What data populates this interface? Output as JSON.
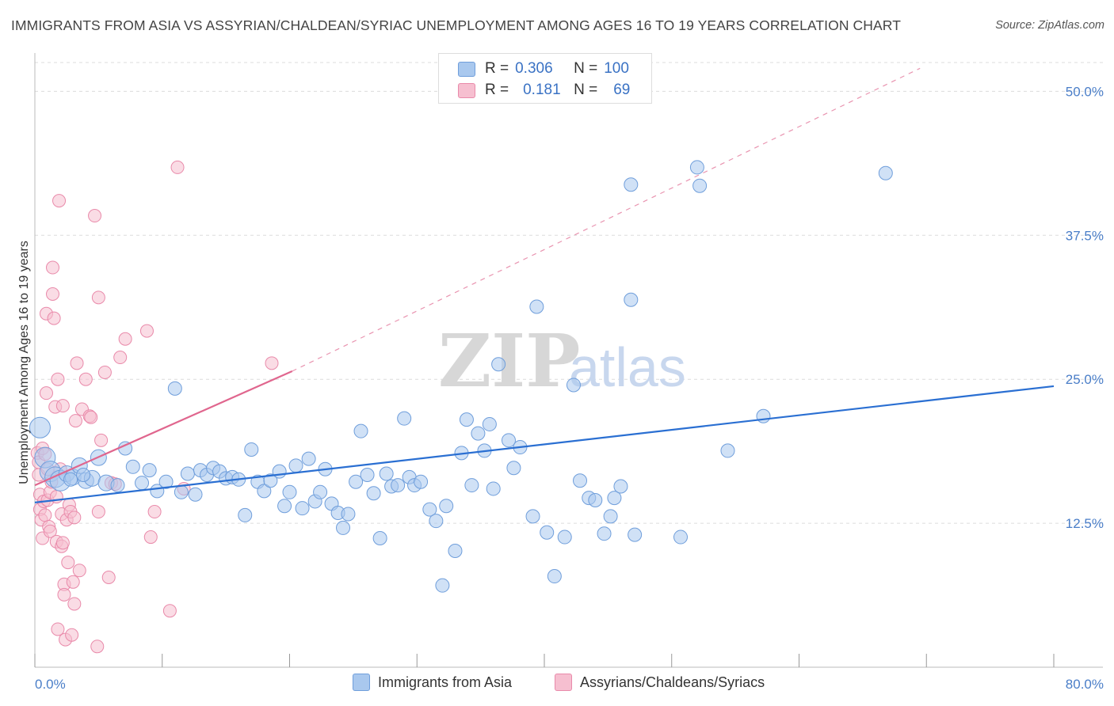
{
  "title": "IMMIGRANTS FROM ASIA VS ASSYRIAN/CHALDEAN/SYRIAC UNEMPLOYMENT AMONG AGES 16 TO 19 YEARS CORRELATION CHART",
  "source": "Source: ZipAtlas.com",
  "colors": {
    "blue_fill": "#a9c8ee",
    "blue_stroke": "#6f9edb",
    "blue_line": "#2a6fd2",
    "pink_fill": "#f6bfd0",
    "pink_stroke": "#e98aaa",
    "pink_line": "#e0668e",
    "grid": "#dcdcdc",
    "axis": "#999999",
    "tick_label": "#4a7ec8"
  },
  "legend": {
    "rows": [
      {
        "r_label": "R =",
        "r_value": "0.306",
        "n_label": "N =",
        "n_value": "100"
      },
      {
        "r_label": "R =",
        "r_value": "0.181",
        "n_label": "N =",
        "n_value": "69"
      }
    ]
  },
  "watermark": {
    "zip": "ZIP",
    "atlas": "atlas"
  },
  "chart_data": {
    "type": "scatter",
    "title": "IMMIGRANTS FROM ASIA VS ASSYRIAN/CHALDEAN/SYRIAC UNEMPLOYMENT AMONG AGES 16 TO 19 YEARS CORRELATION CHART",
    "xlabel": "",
    "ylabel": "Unemployment Among Ages 16 to 19 years",
    "xlim": [
      0,
      80
    ],
    "ylim": [
      0,
      52.5
    ],
    "x_tick_labels": [
      "0.0%",
      "80.0%"
    ],
    "y_ticks": [
      12.5,
      25.0,
      37.5,
      50.0
    ],
    "y_tick_labels": [
      "12.5%",
      "25.0%",
      "37.5%",
      "50.0%"
    ],
    "grid": true,
    "series": [
      {
        "name": "Immigrants from Asia",
        "r": 0.306,
        "n": 100,
        "trend": {
          "x0": 0,
          "y0": 14.3,
          "x1": 80,
          "y1": 24.4
        },
        "points": [
          [
            0.4,
            20.8
          ],
          [
            0.8,
            18.2
          ],
          [
            1.2,
            17.0
          ],
          [
            1.6,
            16.5
          ],
          [
            2.0,
            16.2
          ],
          [
            2.5,
            16.8
          ],
          [
            3.0,
            16.5
          ],
          [
            3.5,
            17.5
          ],
          [
            4.0,
            16.2
          ],
          [
            4.5,
            16.4
          ],
          [
            5.0,
            18.2
          ],
          [
            5.6,
            16.0
          ],
          [
            6.5,
            15.8
          ],
          [
            7.1,
            19.0
          ],
          [
            7.7,
            17.4
          ],
          [
            8.4,
            16.0
          ],
          [
            9.0,
            17.1
          ],
          [
            9.6,
            15.3
          ],
          [
            10.3,
            16.1
          ],
          [
            11.0,
            24.2
          ],
          [
            11.5,
            15.2
          ],
          [
            12.0,
            16.8
          ],
          [
            12.6,
            15.0
          ],
          [
            13.0,
            17.1
          ],
          [
            13.5,
            16.7
          ],
          [
            14.0,
            17.3
          ],
          [
            14.5,
            17.0
          ],
          [
            15.0,
            16.4
          ],
          [
            15.5,
            16.5
          ],
          [
            16.0,
            16.3
          ],
          [
            16.5,
            13.2
          ],
          [
            17.0,
            18.9
          ],
          [
            17.5,
            16.1
          ],
          [
            18.0,
            15.3
          ],
          [
            18.5,
            16.2
          ],
          [
            19.2,
            17.0
          ],
          [
            19.6,
            14.0
          ],
          [
            20.0,
            15.2
          ],
          [
            20.5,
            17.5
          ],
          [
            21.0,
            13.8
          ],
          [
            21.5,
            18.1
          ],
          [
            22.0,
            14.4
          ],
          [
            22.4,
            15.2
          ],
          [
            22.8,
            17.2
          ],
          [
            23.3,
            14.2
          ],
          [
            23.8,
            13.4
          ],
          [
            24.2,
            12.1
          ],
          [
            24.6,
            13.3
          ],
          [
            25.2,
            16.1
          ],
          [
            25.6,
            20.5
          ],
          [
            26.1,
            16.7
          ],
          [
            26.6,
            15.1
          ],
          [
            27.1,
            11.2
          ],
          [
            27.6,
            16.8
          ],
          [
            28.0,
            15.7
          ],
          [
            28.5,
            15.8
          ],
          [
            29.0,
            21.6
          ],
          [
            29.4,
            16.5
          ],
          [
            29.8,
            15.8
          ],
          [
            30.3,
            16.1
          ],
          [
            31.0,
            13.7
          ],
          [
            31.5,
            12.7
          ],
          [
            32.0,
            7.1
          ],
          [
            32.3,
            14.0
          ],
          [
            33.0,
            10.1
          ],
          [
            33.5,
            18.6
          ],
          [
            33.9,
            21.5
          ],
          [
            34.3,
            15.8
          ],
          [
            34.8,
            20.3
          ],
          [
            35.3,
            18.8
          ],
          [
            35.7,
            21.1
          ],
          [
            36.0,
            15.5
          ],
          [
            36.4,
            26.3
          ],
          [
            37.2,
            19.7
          ],
          [
            37.6,
            17.3
          ],
          [
            38.1,
            19.1
          ],
          [
            39.1,
            13.1
          ],
          [
            39.4,
            31.3
          ],
          [
            40.2,
            11.7
          ],
          [
            40.8,
            7.9
          ],
          [
            41.6,
            11.3
          ],
          [
            42.3,
            24.5
          ],
          [
            42.8,
            16.2
          ],
          [
            43.5,
            14.7
          ],
          [
            44.0,
            14.5
          ],
          [
            44.7,
            11.6
          ],
          [
            45.2,
            13.1
          ],
          [
            45.5,
            14.7
          ],
          [
            46.0,
            15.7
          ],
          [
            46.8,
            31.9
          ],
          [
            46.8,
            41.9
          ],
          [
            47.1,
            11.5
          ],
          [
            50.7,
            11.3
          ],
          [
            52.0,
            43.4
          ],
          [
            52.2,
            41.8
          ],
          [
            54.4,
            18.8
          ],
          [
            57.2,
            21.8
          ],
          [
            66.8,
            42.9
          ],
          [
            3.8,
            16.7
          ],
          [
            2.8,
            16.3
          ]
        ]
      },
      {
        "name": "Assyrians/Chaldeans/Syriacs",
        "r": 0.181,
        "n": 69,
        "trend": {
          "x0": 0,
          "y0": 15.8,
          "x1": 20.2,
          "y1": 25.7
        },
        "trend_dashed": {
          "x0": 20.2,
          "y0": 25.7,
          "x1": 69.5,
          "y1": 52.0
        },
        "points": [
          [
            0.2,
            18.6
          ],
          [
            0.3,
            17.8
          ],
          [
            0.3,
            16.7
          ],
          [
            0.4,
            15.0
          ],
          [
            0.4,
            13.7
          ],
          [
            0.5,
            12.8
          ],
          [
            0.6,
            11.2
          ],
          [
            0.6,
            19.0
          ],
          [
            0.7,
            14.4
          ],
          [
            0.8,
            18.5
          ],
          [
            0.8,
            13.2
          ],
          [
            0.9,
            23.8
          ],
          [
            0.9,
            30.7
          ],
          [
            1.0,
            17.2
          ],
          [
            1.0,
            14.5
          ],
          [
            1.1,
            12.2
          ],
          [
            1.2,
            11.8
          ],
          [
            1.2,
            15.2
          ],
          [
            1.3,
            16.1
          ],
          [
            1.4,
            34.7
          ],
          [
            1.4,
            32.4
          ],
          [
            1.5,
            30.3
          ],
          [
            1.6,
            22.6
          ],
          [
            1.7,
            14.8
          ],
          [
            1.7,
            10.9
          ],
          [
            1.8,
            3.3
          ],
          [
            1.8,
            25.0
          ],
          [
            1.9,
            40.5
          ],
          [
            2.0,
            17.2
          ],
          [
            2.1,
            13.3
          ],
          [
            2.1,
            10.5
          ],
          [
            2.2,
            10.8
          ],
          [
            2.2,
            22.7
          ],
          [
            2.3,
            7.2
          ],
          [
            2.3,
            6.3
          ],
          [
            2.4,
            2.4
          ],
          [
            2.5,
            12.8
          ],
          [
            2.6,
            9.1
          ],
          [
            2.7,
            14.1
          ],
          [
            2.8,
            13.5
          ],
          [
            2.9,
            2.8
          ],
          [
            3.0,
            7.4
          ],
          [
            3.1,
            13.0
          ],
          [
            3.1,
            5.5
          ],
          [
            3.2,
            21.4
          ],
          [
            3.3,
            26.4
          ],
          [
            3.5,
            8.4
          ],
          [
            3.7,
            22.4
          ],
          [
            4.0,
            25.0
          ],
          [
            4.3,
            21.8
          ],
          [
            4.4,
            21.7
          ],
          [
            4.7,
            39.2
          ],
          [
            4.9,
            1.8
          ],
          [
            5.0,
            32.1
          ],
          [
            5.0,
            13.5
          ],
          [
            5.2,
            19.7
          ],
          [
            5.5,
            25.6
          ],
          [
            5.8,
            7.8
          ],
          [
            6.0,
            16.0
          ],
          [
            6.3,
            15.9
          ],
          [
            6.7,
            26.9
          ],
          [
            7.1,
            28.5
          ],
          [
            8.8,
            29.2
          ],
          [
            9.1,
            11.3
          ],
          [
            9.4,
            13.5
          ],
          [
            10.6,
            4.9
          ],
          [
            11.2,
            43.4
          ],
          [
            11.7,
            15.5
          ],
          [
            18.6,
            26.4
          ]
        ]
      }
    ],
    "legend_position": "top-center"
  }
}
